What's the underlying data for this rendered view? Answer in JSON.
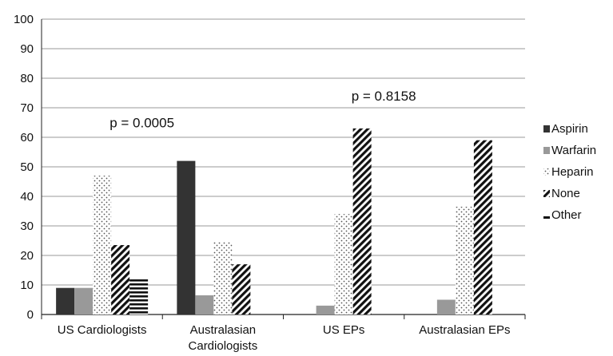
{
  "chart_data": {
    "type": "bar",
    "title": "",
    "xlabel": "",
    "ylabel": "",
    "ylim": [
      0,
      100
    ],
    "yticks": [
      0,
      10,
      20,
      30,
      40,
      50,
      60,
      70,
      80,
      90,
      100
    ],
    "grid": true,
    "legend_position": "right",
    "categories": [
      [
        "US Cardiologists"
      ],
      [
        "Australasian",
        "Cardiologists"
      ],
      [
        "US EPs"
      ],
      [
        "Australasian EPs"
      ]
    ],
    "series": [
      {
        "name": "Aspirin",
        "values": [
          9,
          52,
          0,
          0
        ],
        "color": "#333333",
        "pattern": "solid"
      },
      {
        "name": "Warfarin",
        "values": [
          9,
          6.5,
          3,
          5
        ],
        "color": "#999999",
        "pattern": "solid"
      },
      {
        "name": "Heparin",
        "values": [
          47,
          24.5,
          34,
          36.5
        ],
        "color": "#555555",
        "pattern": "dots"
      },
      {
        "name": "None",
        "values": [
          23.5,
          17,
          63,
          59
        ],
        "color": "#111111",
        "pattern": "diagonal"
      },
      {
        "name": "Other",
        "values": [
          12,
          0,
          0,
          0
        ],
        "color": "#111111",
        "pattern": "horizontal"
      }
    ],
    "annotations": [
      {
        "text": "p = 0.0005",
        "x_category": 0,
        "y": 65
      },
      {
        "text": "p = 0.8158",
        "x_category": 2,
        "y": 74
      }
    ]
  }
}
